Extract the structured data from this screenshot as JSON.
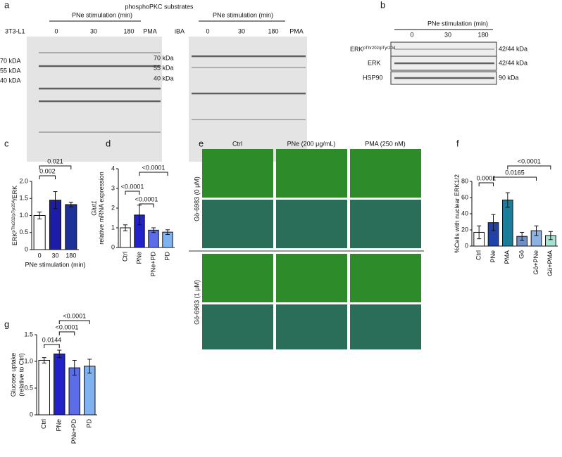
{
  "panel_a": {
    "label": "a",
    "title": "phosphoPKC substrates",
    "blots": [
      {
        "cell_line": "3T3-L1",
        "stimulation": "PNe stimulation (min)",
        "lanes": [
          "0",
          "30",
          "180",
          "PMA"
        ],
        "markers": [
          "70 kDA",
          "55 kDA",
          "40 kDA"
        ]
      },
      {
        "cell_line": "iBA",
        "stimulation": "PNe stimulation (min)",
        "lanes": [
          "0",
          "30",
          "180",
          "PMA"
        ],
        "markers": [
          "70 kDa",
          "55 kDa",
          "40 kDa"
        ]
      }
    ]
  },
  "panel_b": {
    "label": "b",
    "stimulation": "PNe stimulation (min)",
    "lanes": [
      "0",
      "30",
      "180"
    ],
    "rows": [
      {
        "target": "ERK",
        "target_superscript": "pThr202/pTyr204",
        "size": "42/44 kDa"
      },
      {
        "target": "ERK",
        "size": "42/44 kDa"
      },
      {
        "target": "HSP90",
        "size": "90 kDa"
      }
    ]
  },
  "panel_e": {
    "label": "e",
    "columns": [
      "Ctrl",
      "PNe (200 μg/mL)",
      "PMA (250 nM)"
    ],
    "rows": [
      "Gö-6983 (0 μM)",
      "Gö-6983 (1 μM)"
    ]
  },
  "chart_data": [
    {
      "type": "bar",
      "panel": "c",
      "y_label": "ERK",
      "y_label_superscript": "pThr202/pTyr204",
      "y_label_suffix": "/ERK",
      "x_label": "PNe stimulation (min)",
      "categories": [
        "0",
        "30",
        "180"
      ],
      "values": [
        1.0,
        1.45,
        1.32
      ],
      "errors": [
        0.1,
        0.25,
        0.07
      ],
      "colors": [
        "#ffffff",
        "#1c1ca8",
        "#20309a"
      ],
      "ylim": [
        0,
        2.0
      ],
      "yticks": [
        0,
        {
          "value": 0.5,
          "label": "0.5"
        },
        {
          "value": 1.0,
          "label": "1.0"
        },
        {
          "value": 1.5,
          "label": "1.5"
        },
        {
          "value": 2.0,
          "label": "2.0"
        }
      ],
      "annotations": [
        "0.002",
        "0.021"
      ]
    },
    {
      "type": "bar",
      "panel": "d",
      "y_label_gene": "Glut1",
      "y_label": "relative mRNA expression",
      "categories": [
        "Ctrl",
        "PNe",
        "PNe+PD",
        "PD"
      ],
      "values": [
        1.0,
        1.65,
        0.88,
        0.78
      ],
      "errors": [
        0.15,
        0.5,
        0.12,
        0.12
      ],
      "colors": [
        "#ffffff",
        "#2222c8",
        "#5b6ee8",
        "#80b2f0"
      ],
      "ylim": [
        0,
        4
      ],
      "yticks": [
        0,
        1,
        2,
        3,
        4
      ],
      "annotations": [
        "<0.0001",
        "<0.0001",
        "<0.0001"
      ]
    },
    {
      "type": "bar",
      "panel": "f",
      "y_label": "%Cells with nuclear ERK1/2",
      "categories": [
        "Ctrl",
        "PNe",
        "PMA",
        "Gö",
        "Gö+PNe",
        "Gö+PMA"
      ],
      "values": [
        17,
        29,
        57,
        12,
        19,
        13
      ],
      "errors": [
        8,
        10,
        9,
        5,
        6,
        5
      ],
      "colors": [
        "#ffffff",
        "#2142a8",
        "#1a7e9a",
        "#6f90c8",
        "#8cb2e2",
        "#a6e2d2"
      ],
      "ylim": [
        0,
        80
      ],
      "yticks": [
        0,
        20,
        40,
        60,
        80
      ],
      "annotations": [
        "0.0001",
        "<0.0001",
        "0.0165"
      ]
    },
    {
      "type": "bar",
      "panel": "g",
      "y_label": "Glucose uptake",
      "y_label_sub": "(relative to Ctrl)",
      "categories": [
        "Ctrl",
        "PNe",
        "PNe+PD",
        "PD"
      ],
      "values": [
        1.02,
        1.14,
        0.88,
        0.91
      ],
      "errors": [
        0.05,
        0.07,
        0.14,
        0.13
      ],
      "colors": [
        "#ffffff",
        "#2222c8",
        "#5b6ee8",
        "#80b2f0"
      ],
      "ylim": [
        0,
        1.5
      ],
      "yticks": [
        0,
        {
          "value": 0.5,
          "label": "0.5"
        },
        {
          "value": 1.0,
          "label": "1.0"
        },
        {
          "value": 1.5,
          "label": "1.5"
        }
      ],
      "annotations": [
        "0.0144",
        "<0.0001",
        "<0.0001"
      ]
    }
  ]
}
